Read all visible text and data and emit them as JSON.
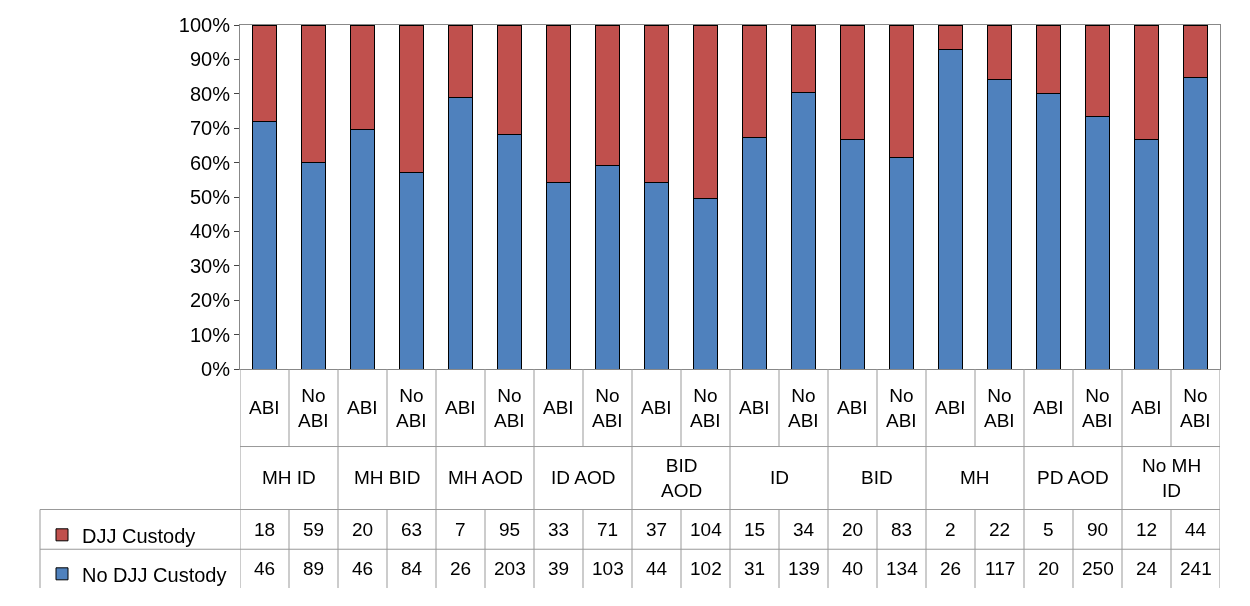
{
  "chart_data": {
    "type": "bar",
    "stacked": true,
    "categories": [
      "ABI",
      "No ABI",
      "ABI",
      "No ABI",
      "ABI",
      "No ABI",
      "ABI",
      "No ABI",
      "ABI",
      "No ABI",
      "ABI",
      "No ABI",
      "ABI",
      "No ABI",
      "ABI",
      "No ABI",
      "ABI",
      "No ABI",
      "ABI",
      "No ABI"
    ],
    "annotations": [
      "MH ID",
      "MH BID",
      "MH AOD",
      "ID AOD",
      "BID AOD",
      "ID",
      "BID",
      "MH",
      "PD AOD",
      "No MH ID",
      "18",
      "59",
      "20",
      "63",
      "7",
      "95",
      "33",
      "71",
      "37",
      "104",
      "15",
      "34",
      "20",
      "83",
      "2",
      "22",
      "5",
      "90",
      "12",
      "44",
      "46",
      "89",
      "46",
      "84",
      "26",
      "203",
      "39",
      "103",
      "44",
      "102",
      "31",
      "139",
      "40",
      "134",
      "26",
      "117",
      "20",
      "250",
      "24",
      "241"
    ],
    "series": [
      {
        "name": "No DJJ Custody",
        "color": "#4f81bd",
        "values": [
          71.9,
          60.1,
          69.7,
          57.1,
          78.8,
          68.1,
          54.2,
          59.2,
          54.3,
          49.5,
          67.4,
          80.3,
          66.7,
          61.5,
          92.9,
          84.2,
          80.0,
          73.5,
          66.7,
          84.6
        ]
      },
      {
        "name": "DJJ Custody",
        "color": "#c0504d",
        "values": [
          28.1,
          39.9,
          30.3,
          42.9,
          21.2,
          31.9,
          45.8,
          40.8,
          45.7,
          50.5,
          32.6,
          19.7,
          33.3,
          38.5,
          7.1,
          15.8,
          20.0,
          26.5,
          33.3,
          15.4
        ]
      }
    ],
    "ylim": [
      0,
      100
    ],
    "yticks": [
      {
        "value": 0,
        "label": "0%"
      },
      {
        "value": 10,
        "label": "10%"
      },
      {
        "value": 20,
        "label": "20%"
      },
      {
        "value": 30,
        "label": "30%"
      },
      {
        "value": 40,
        "label": "40%"
      },
      {
        "value": 50,
        "label": "50%"
      },
      {
        "value": 60,
        "label": "60%"
      },
      {
        "value": 70,
        "label": "70%"
      },
      {
        "value": 80,
        "label": "80%"
      },
      {
        "value": 90,
        "label": "90%"
      },
      {
        "value": 100,
        "label": "100%"
      }
    ],
    "grid": false,
    "legend": "bottom left"
  }
}
